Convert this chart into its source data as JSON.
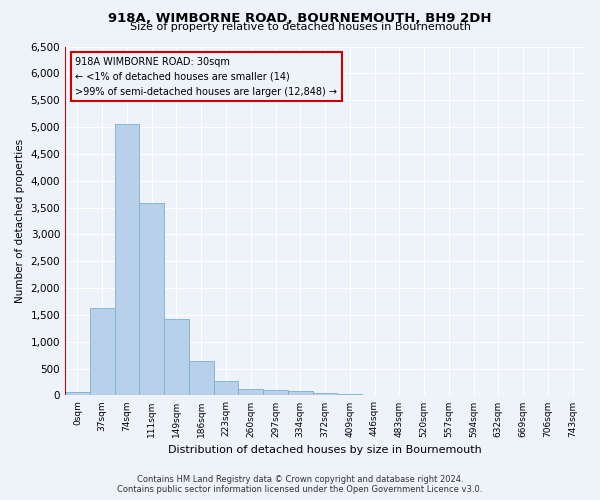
{
  "title": "918A, WIMBORNE ROAD, BOURNEMOUTH, BH9 2DH",
  "subtitle": "Size of property relative to detached houses in Bournemouth",
  "xlabel": "Distribution of detached houses by size in Bournemouth",
  "ylabel": "Number of detached properties",
  "footer_line1": "Contains HM Land Registry data © Crown copyright and database right 2024.",
  "footer_line2": "Contains public sector information licensed under the Open Government Licence v3.0.",
  "annotation_title": "918A WIMBORNE ROAD: 30sqm",
  "annotation_line1": "← <1% of detached houses are smaller (14)",
  "annotation_line2": ">99% of semi-detached houses are larger (12,848) →",
  "bar_color": "#b8d0ea",
  "bar_edge_color": "#7aafd4",
  "highlight_color": "#cc0000",
  "categories": [
    "0sqm",
    "37sqm",
    "74sqm",
    "111sqm",
    "149sqm",
    "186sqm",
    "223sqm",
    "260sqm",
    "297sqm",
    "334sqm",
    "372sqm",
    "409sqm",
    "446sqm",
    "483sqm",
    "520sqm",
    "557sqm",
    "594sqm",
    "632sqm",
    "669sqm",
    "706sqm",
    "743sqm"
  ],
  "values": [
    55,
    1620,
    5050,
    3580,
    1420,
    650,
    270,
    125,
    110,
    75,
    50,
    18,
    10,
    5,
    0,
    0,
    0,
    0,
    0,
    0,
    0
  ],
  "ylim": [
    0,
    6500
  ],
  "yticks": [
    0,
    500,
    1000,
    1500,
    2000,
    2500,
    3000,
    3500,
    4000,
    4500,
    5000,
    5500,
    6000,
    6500
  ],
  "bg_color": "#eef2f9",
  "grid_color": "#ffffff"
}
